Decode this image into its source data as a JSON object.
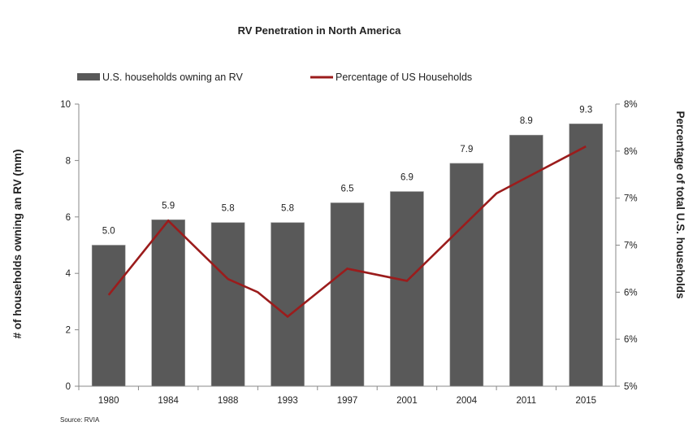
{
  "chart_data": {
    "type": "bar+line",
    "title": "RV Penetration in North America",
    "categories": [
      "1980",
      "1984",
      "1988",
      "1993",
      "1997",
      "2001",
      "2004",
      "2011",
      "2015"
    ],
    "series": [
      {
        "name": "U.S. households owning an RV",
        "type": "bar",
        "axis": "left",
        "values": [
          5.0,
          5.9,
          5.8,
          5.8,
          6.5,
          6.9,
          7.9,
          8.9,
          9.3
        ],
        "labels": [
          "5.0",
          "5.9",
          "5.8",
          "5.8",
          "6.5",
          "6.9",
          "7.9",
          "8.9",
          "9.3"
        ],
        "color": "#595959"
      },
      {
        "name": "Percentage of US Households",
        "type": "line",
        "axis": "right",
        "x_index": [
          0,
          1,
          2,
          2.5,
          3,
          4,
          5,
          6.5,
          8
        ],
        "values": [
          5.97,
          6.76,
          6.14,
          6.0,
          5.74,
          6.25,
          6.12,
          7.05,
          7.55
        ],
        "color": "#9b1c1c"
      }
    ],
    "ylabel": "# of households owning an RV (mm)",
    "ylabel_right": "Percentage of total U.S. households",
    "ylim": [
      0,
      10
    ],
    "yticks": [
      "0",
      "2",
      "4",
      "6",
      "8",
      "10"
    ],
    "ylim_right": [
      5,
      8
    ],
    "yticks_right": [
      "5%",
      "6%",
      "6%",
      "7%",
      "7%",
      "8%",
      "8%"
    ],
    "legend": "top",
    "grid": false
  },
  "source": "Source: RVIA"
}
